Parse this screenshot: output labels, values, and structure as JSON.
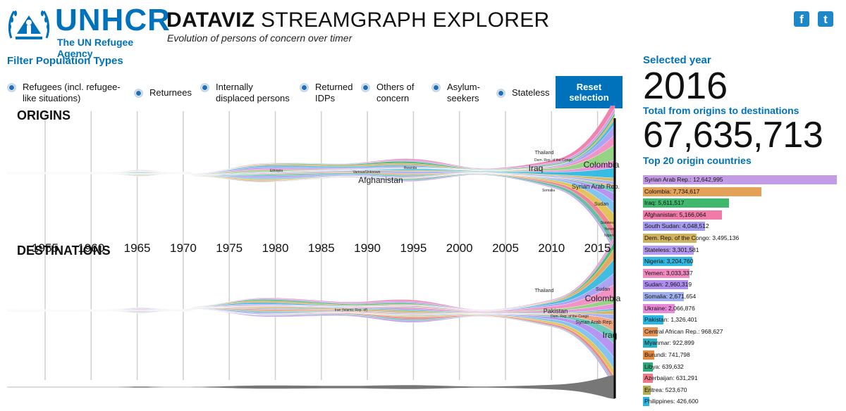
{
  "header": {
    "logo": {
      "wordmark": "UNHCR",
      "tagline": "The UN Refugee Agency"
    },
    "title_bold": "DATAVIZ",
    "title_rest": " STREAMGRAPH EXPLORER",
    "subtitle": "Evolution of persons of concern over timer",
    "social": [
      {
        "icon": "facebook-icon",
        "glyph": "f"
      },
      {
        "icon": "twitter-icon",
        "glyph": "t"
      }
    ]
  },
  "filters": {
    "heading": "Filter Population Types",
    "items": [
      {
        "line1": "Refugees (incl. refugee-",
        "line2": "like situations)"
      },
      {
        "line1": "Returnees",
        "line2": ""
      },
      {
        "line1": "Internally",
        "line2": "displaced persons"
      },
      {
        "line1": "Returned",
        "line2": "IDPs"
      },
      {
        "line1": "Others of",
        "line2": "concern"
      },
      {
        "line1": "Asylum-",
        "line2": "seekers"
      },
      {
        "line1": "Stateless",
        "line2": ""
      }
    ],
    "reset_line1": "Reset",
    "reset_line2": "selection"
  },
  "streams": {
    "origins_label": "ORIGINS",
    "destinations_label": "DESTINATIONS",
    "years": [
      "1955",
      "1960",
      "1965",
      "1970",
      "1975",
      "1980",
      "1985",
      "1990",
      "1995",
      "2000",
      "2005",
      "2010",
      "2015"
    ],
    "origins_labels": [
      {
        "text": "Afghanistan",
        "size": "big"
      },
      {
        "text": "Iraq",
        "size": "big"
      },
      {
        "text": "Colombia",
        "size": "big"
      },
      {
        "text": "Syrian Arab Rep.",
        "size": "mid"
      },
      {
        "text": "Thailand",
        "size": "small"
      },
      {
        "text": "Dem. Rep. of the Congo",
        "size": "tiny"
      },
      {
        "text": "Sudan",
        "size": "small"
      },
      {
        "text": "Various/Unknown",
        "size": "tiny"
      },
      {
        "text": "Rwanda",
        "size": "tiny"
      },
      {
        "text": "Ethiopia",
        "size": "tiny"
      },
      {
        "text": "Somalia",
        "size": "tiny"
      },
      {
        "text": "Stateless",
        "size": "tiny"
      },
      {
        "text": "Yemen",
        "size": "tiny"
      },
      {
        "text": "Nigeria",
        "size": "tiny"
      }
    ],
    "destinations_labels": [
      {
        "text": "Colombia",
        "size": "big"
      },
      {
        "text": "Pakistan",
        "size": "mid"
      },
      {
        "text": "Iraq",
        "size": "big"
      },
      {
        "text": "Syrian Arab Rep.",
        "size": "small"
      },
      {
        "text": "Dem. Rep. of the Congo",
        "size": "tiny"
      },
      {
        "text": "Sudan",
        "size": "small"
      },
      {
        "text": "Thailand",
        "size": "small"
      },
      {
        "text": "Iran (Islamic Rep. of)",
        "size": "tiny"
      }
    ]
  },
  "summary": {
    "selected_year_label": "Selected year",
    "selected_year": "2016",
    "total_label": "Total from origins to destinations",
    "total_value": "67,635,713",
    "top_label": "Top 20 origin countries"
  },
  "top_origins": [
    {
      "label": "Syrian Arab Rep.: 12,642,995",
      "value": 12642995,
      "color": "#c39ce6"
    },
    {
      "label": "Colombia: 7,734,617",
      "value": 7734617,
      "color": "#e3a257"
    },
    {
      "label": "Iraq: 5,611,517",
      "value": 5611517,
      "color": "#3fb86e"
    },
    {
      "label": "Afghanistan: 5,166,064",
      "value": 5166064,
      "color": "#f07aa8"
    },
    {
      "label": "South Sudan: 4,048,512",
      "value": 4048512,
      "color": "#a59cf0"
    },
    {
      "label": "Dem. Rep. of the Congo: 3,495,136",
      "value": 3495136,
      "color": "#d0b25e"
    },
    {
      "label": "Stateless: 3,301,581",
      "value": 3301581,
      "color": "#b69cf0"
    },
    {
      "label": "Nigeria: 3,204,760",
      "value": 3204760,
      "color": "#33b8e0"
    },
    {
      "label": "Yemen: 3,033,337",
      "value": 3033337,
      "color": "#f08ac0"
    },
    {
      "label": "Sudan: 2,960,319",
      "value": 2960319,
      "color": "#b08ef0"
    },
    {
      "label": "Somalia: 2,671,654",
      "value": 2671654,
      "color": "#9fb0ef"
    },
    {
      "label": "Ukraine: 2,066,876",
      "value": 2066876,
      "color": "#e88ad9"
    },
    {
      "label": "Pakistan: 1,326,401",
      "value": 1326401,
      "color": "#27b7e2"
    },
    {
      "label": "Central African Rep.: 968,627",
      "value": 968627,
      "color": "#e4965a"
    },
    {
      "label": "Myanmar: 922,899",
      "value": 922899,
      "color": "#2db0c4"
    },
    {
      "label": "Burundi: 741,798",
      "value": 741798,
      "color": "#e48a3c"
    },
    {
      "label": "Libya: 639,632",
      "value": 639632,
      "color": "#2bab7e"
    },
    {
      "label": "Azerbaijan: 631,291",
      "value": 631291,
      "color": "#f07a8a"
    },
    {
      "label": "Eritrea: 523,670",
      "value": 523670,
      "color": "#b6ac50"
    },
    {
      "label": "Philippines: 426,600",
      "value": 426600,
      "color": "#27b7e2"
    }
  ]
}
